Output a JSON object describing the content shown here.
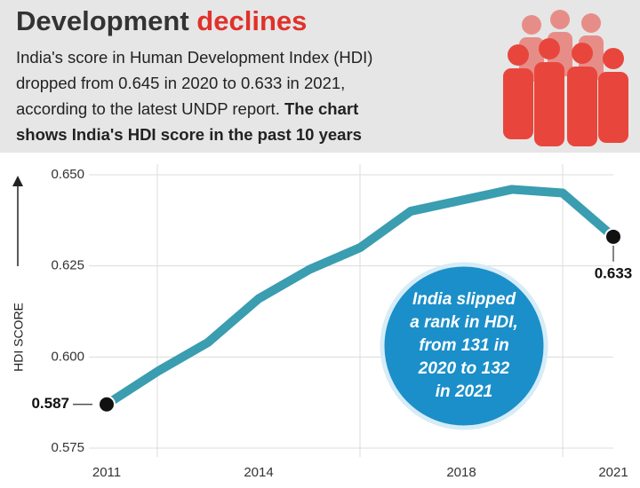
{
  "chart_data": {
    "type": "line",
    "title": [
      "Development",
      "declines"
    ],
    "subtitle": [
      "India's score in Human Development Index (HDI)",
      "dropped from 0.645 in 2020 to 0.633 in 2021,",
      "according to the latest UNDP report."
    ],
    "subtitle_bold": [
      "The chart",
      "shows India's HDI score in the past 10 years"
    ],
    "y_label": "HDI SCORE",
    "x": [
      2011,
      2012,
      2013,
      2014,
      2015,
      2016,
      2017,
      2018,
      2019,
      2020,
      2021
    ],
    "values": [
      0.587,
      0.596,
      0.604,
      0.616,
      0.624,
      0.63,
      0.64,
      0.643,
      0.646,
      0.645,
      0.633
    ],
    "color": "#3a9db0",
    "xlim": [
      2011,
      2021
    ],
    "xticks": [
      2011,
      2014,
      2018,
      2021
    ],
    "xgrid": [
      2012,
      2016,
      2020
    ],
    "ylim": [
      0.575,
      0.65
    ],
    "yticks": [
      {
        "value": 0.65,
        "label": "0.650"
      },
      0.625,
      {
        "value": 0.6,
        "label": "0.600"
      },
      0.575
    ],
    "grid": true,
    "callout": [
      "India slipped",
      "a rank in HDI,",
      "from 131 in",
      "2020 to 132",
      "in 2021"
    ]
  }
}
